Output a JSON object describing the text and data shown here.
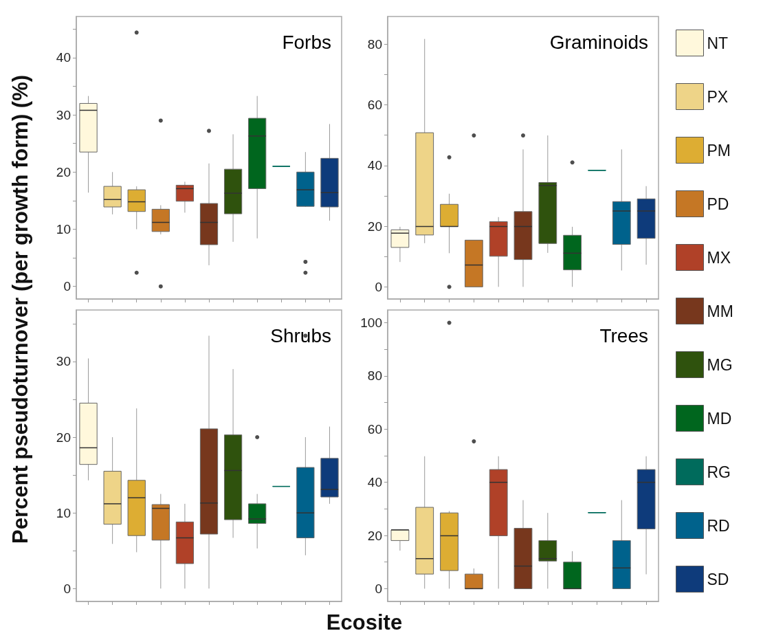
{
  "chart_data": [
    {
      "type": "box",
      "title": "Forbs",
      "ylabel": "Percent pseudoturnover  (per growth form) (%)",
      "categories": [
        null,
        null,
        null,
        null,
        null,
        null,
        null,
        null,
        null,
        null,
        null
      ],
      "tick_labels": "y",
      "ylim": [
        -2.2,
        47.2
      ],
      "yticks": [
        0,
        {
          "value": 5,
          "label": null
        },
        10,
        {
          "value": 15,
          "label": null
        },
        20,
        {
          "value": 25,
          "label": null
        },
        30,
        {
          "value": 35,
          "label": null
        },
        40,
        {
          "value": 45,
          "label": null
        }
      ],
      "series": [
        {
          "color": "#fff8dc",
          "boxes": [
            {
              "low": 16.4,
              "q1": 23.5,
              "median": 30.8,
              "q3": 32.0,
              "high": 33.3
            },
            null,
            null,
            null,
            null,
            null,
            null,
            null,
            null,
            null,
            null
          ]
        },
        {
          "color": "#eed488",
          "boxes": [
            null,
            {
              "low": 12.6,
              "q1": 13.9,
              "median": 15.2,
              "q3": 17.5,
              "high": 20.0
            },
            null,
            null,
            null,
            null,
            null,
            null,
            null,
            null,
            null
          ]
        },
        {
          "color": "#ddad33",
          "boxes": [
            null,
            null,
            {
              "low": 10.0,
              "q1": 13.1,
              "median": 14.8,
              "q3": 16.9,
              "high": 17.5,
              "outliers": [
                44.4,
                2.4
              ]
            },
            null,
            null,
            null,
            null,
            null,
            null,
            null,
            null
          ]
        },
        {
          "color": "#c57725",
          "boxes": [
            null,
            null,
            null,
            {
              "low": 9.1,
              "q1": 9.6,
              "median": 11.2,
              "q3": 13.5,
              "high": 14.2,
              "outliers": [
                29.0,
                0
              ]
            },
            null,
            null,
            null,
            null,
            null,
            null,
            null
          ]
        },
        {
          "color": "#b04128",
          "boxes": [
            null,
            null,
            null,
            null,
            {
              "low": 12.9,
              "q1": 14.9,
              "median": 17.1,
              "q3": 17.7,
              "high": 18.3
            },
            null,
            null,
            null,
            null,
            null,
            null
          ]
        },
        {
          "color": "#77371d",
          "boxes": [
            null,
            null,
            null,
            null,
            null,
            {
              "low": 3.7,
              "q1": 7.3,
              "median": 11.2,
              "q3": 14.5,
              "high": 21.5,
              "outliers": [
                27.2
              ]
            },
            null,
            null,
            null,
            null,
            null
          ]
        },
        {
          "color": "#2f520d",
          "boxes": [
            null,
            null,
            null,
            null,
            null,
            null,
            {
              "low": 7.8,
              "q1": 12.7,
              "median": 16.3,
              "q3": 20.5,
              "high": 26.6
            },
            null,
            null,
            null,
            null
          ]
        },
        {
          "color": "#00661e",
          "boxes": [
            null,
            null,
            null,
            null,
            null,
            null,
            null,
            {
              "low": 8.4,
              "q1": 17.1,
              "median": 26.3,
              "q3": 29.4,
              "high": 33.3
            },
            null,
            null,
            null
          ]
        },
        {
          "color": "#006b5c",
          "boxes": [
            null,
            null,
            null,
            null,
            null,
            null,
            null,
            null,
            {
              "low": 21.0,
              "q1": 21.0,
              "median": 21.0,
              "q3": 21.0,
              "high": 21.0
            },
            null,
            null
          ]
        },
        {
          "color": "#00628c",
          "boxes": [
            null,
            null,
            null,
            null,
            null,
            null,
            null,
            null,
            null,
            {
              "low": 13.9,
              "q1": 14.0,
              "median": 16.9,
              "q3": 20.0,
              "high": 23.5,
              "outliers": [
                4.3,
                2.4
              ]
            },
            null
          ]
        },
        {
          "color": "#0e3b7b",
          "boxes": [
            null,
            null,
            null,
            null,
            null,
            null,
            null,
            null,
            null,
            null,
            {
              "low": 11.5,
              "q1": 13.9,
              "median": 16.4,
              "q3": 22.4,
              "high": 28.4
            }
          ]
        }
      ]
    },
    {
      "type": "box",
      "title": "Graminoids",
      "legend": "right",
      "categories": [
        null,
        null,
        null,
        null,
        null,
        null,
        null,
        null,
        null,
        null,
        null
      ],
      "tick_labels": "y",
      "ylim": [
        -4,
        89.1
      ],
      "yticks": [
        0,
        {
          "value": 10,
          "label": null
        },
        20,
        {
          "value": 30,
          "label": null
        },
        40,
        {
          "value": 50,
          "label": null
        },
        60,
        {
          "value": 70,
          "label": null
        },
        80
      ],
      "series": [
        {
          "name": "NT",
          "color": "#fff8dc",
          "boxes": [
            {
              "low": 8.2,
              "q1": 13.0,
              "median": 17.7,
              "q3": 18.8,
              "high": 19.8
            },
            null,
            null,
            null,
            null,
            null,
            null,
            null,
            null,
            null,
            null
          ]
        },
        {
          "name": "PX",
          "color": "#eed488",
          "boxes": [
            null,
            {
              "low": 14.4,
              "q1": 17.1,
              "median": 19.9,
              "q3": 50.8,
              "high": 81.7
            },
            null,
            null,
            null,
            null,
            null,
            null,
            null,
            null,
            null
          ]
        },
        {
          "name": "PM",
          "color": "#ddad33",
          "boxes": [
            null,
            null,
            {
              "low": 11.1,
              "q1": 19.9,
              "median": 19.9,
              "q3": 27.2,
              "high": 30.7,
              "outliers": [
                42.7,
                0
              ]
            },
            null,
            null,
            null,
            null,
            null,
            null,
            null,
            null
          ]
        },
        {
          "name": "PD",
          "color": "#c57725",
          "boxes": [
            null,
            null,
            null,
            {
              "low": 0,
              "q1": 0,
              "median": 7.2,
              "q3": 15.4,
              "high": 15.4,
              "outliers": [
                49.9
              ]
            },
            null,
            null,
            null,
            null,
            null,
            null,
            null
          ]
        },
        {
          "name": "MX",
          "color": "#b04128",
          "boxes": [
            null,
            null,
            null,
            null,
            {
              "low": 0,
              "q1": 10.1,
              "median": 19.9,
              "q3": 21.5,
              "high": 23.0
            },
            null,
            null,
            null,
            null,
            null,
            null
          ]
        },
        {
          "name": "MM",
          "color": "#77371d",
          "boxes": [
            null,
            null,
            null,
            null,
            null,
            {
              "low": 0,
              "q1": 9.0,
              "median": 19.9,
              "q3": 24.8,
              "high": 45.3,
              "outliers": [
                49.9
              ]
            },
            null,
            null,
            null,
            null,
            null
          ]
        },
        {
          "name": "MG",
          "color": "#2f520d",
          "boxes": [
            null,
            null,
            null,
            null,
            null,
            null,
            {
              "low": 11.2,
              "q1": 14.3,
              "median": 33.4,
              "q3": 34.4,
              "high": 49.9
            },
            null,
            null,
            null,
            null
          ]
        },
        {
          "name": "MD",
          "color": "#00661e",
          "boxes": [
            null,
            null,
            null,
            null,
            null,
            null,
            null,
            {
              "low": 0,
              "q1": 5.6,
              "median": 11.1,
              "q3": 17.0,
              "high": 19.8,
              "outliers": [
                41.0
              ]
            },
            null,
            null,
            null
          ]
        },
        {
          "name": "RG",
          "color": "#006b5c",
          "boxes": [
            null,
            null,
            null,
            null,
            null,
            null,
            null,
            null,
            {
              "low": 38.4,
              "q1": 38.4,
              "median": 38.4,
              "q3": 38.4,
              "high": 38.4
            },
            null,
            null
          ]
        },
        {
          "name": "RD",
          "color": "#00628c",
          "boxes": [
            null,
            null,
            null,
            null,
            null,
            null,
            null,
            null,
            null,
            {
              "low": 5.4,
              "q1": 14.0,
              "median": 25.0,
              "q3": 28.1,
              "high": 45.3
            },
            null
          ]
        },
        {
          "name": "SD",
          "color": "#0e3b7b",
          "boxes": [
            null,
            null,
            null,
            null,
            null,
            null,
            null,
            null,
            null,
            null,
            {
              "low": 7.3,
              "q1": 16.0,
              "median": 25.0,
              "q3": 29.0,
              "high": 33.2
            }
          ]
        }
      ]
    },
    {
      "type": "box",
      "title": "Shrubs",
      "xlabel": "Ecosite",
      "categories": [
        null,
        null,
        null,
        null,
        null,
        null,
        null,
        null,
        null,
        null,
        null
      ],
      "tick_labels": "y",
      "ylim": [
        -1.7,
        36.8
      ],
      "yticks": [
        0,
        {
          "value": 5,
          "label": null
        },
        10,
        {
          "value": 15,
          "label": null
        },
        20,
        {
          "value": 25,
          "label": null
        },
        30,
        {
          "value": 35,
          "label": null
        }
      ],
      "series": [
        {
          "color": "#fff8dc",
          "boxes": [
            {
              "low": 14.3,
              "q1": 16.4,
              "median": 18.6,
              "q3": 24.5,
              "high": 30.4
            },
            null,
            null,
            null,
            null,
            null,
            null,
            null,
            null,
            null,
            null
          ]
        },
        {
          "color": "#eed488",
          "boxes": [
            null,
            {
              "low": 5.9,
              "q1": 8.5,
              "median": 11.2,
              "q3": 15.5,
              "high": 20.0
            },
            null,
            null,
            null,
            null,
            null,
            null,
            null,
            null,
            null
          ]
        },
        {
          "color": "#ddad33",
          "boxes": [
            null,
            null,
            {
              "low": 4.8,
              "q1": 7.0,
              "median": 12.0,
              "q3": 14.3,
              "high": 23.8
            },
            null,
            null,
            null,
            null,
            null,
            null,
            null,
            null
          ]
        },
        {
          "color": "#c57725",
          "boxes": [
            null,
            null,
            null,
            {
              "low": 0,
              "q1": 6.4,
              "median": 10.6,
              "q3": 11.1,
              "high": 12.5
            },
            null,
            null,
            null,
            null,
            null,
            null,
            null
          ]
        },
        {
          "color": "#b04128",
          "boxes": [
            null,
            null,
            null,
            null,
            {
              "low": 0,
              "q1": 3.3,
              "median": 6.7,
              "q3": 8.8,
              "high": 11.2
            },
            null,
            null,
            null,
            null,
            null,
            null
          ]
        },
        {
          "color": "#77371d",
          "boxes": [
            null,
            null,
            null,
            null,
            null,
            {
              "low": 0,
              "q1": 7.2,
              "median": 11.3,
              "q3": 21.1,
              "high": 33.4
            },
            null,
            null,
            null,
            null,
            null
          ]
        },
        {
          "color": "#2f520d",
          "boxes": [
            null,
            null,
            null,
            null,
            null,
            null,
            {
              "low": 6.7,
              "q1": 9.1,
              "median": 15.6,
              "q3": 20.3,
              "high": 29.0
            },
            null,
            null,
            null,
            null
          ]
        },
        {
          "color": "#00661e",
          "boxes": [
            null,
            null,
            null,
            null,
            null,
            null,
            null,
            {
              "low": 5.3,
              "q1": 8.6,
              "median": 9.2,
              "q3": 11.2,
              "high": 12.5,
              "outliers": [
                20.0
              ]
            },
            null,
            null,
            null
          ]
        },
        {
          "color": "#006b5c",
          "boxes": [
            null,
            null,
            null,
            null,
            null,
            null,
            null,
            null,
            {
              "low": 13.5,
              "q1": 13.5,
              "median": 13.5,
              "q3": 13.5,
              "high": 13.5
            },
            null,
            null
          ]
        },
        {
          "color": "#00628c",
          "boxes": [
            null,
            null,
            null,
            null,
            null,
            null,
            null,
            null,
            null,
            {
              "low": 4.4,
              "q1": 6.7,
              "median": 10.0,
              "q3": 16.0,
              "high": 20.0,
              "outliers": [
                33.4
              ]
            },
            null
          ]
        },
        {
          "color": "#0e3b7b",
          "boxes": [
            null,
            null,
            null,
            null,
            null,
            null,
            null,
            null,
            null,
            null,
            {
              "low": 11.2,
              "q1": 12.1,
              "median": 13.1,
              "q3": 17.2,
              "high": 21.4
            }
          ]
        }
      ]
    },
    {
      "type": "box",
      "title": "Trees",
      "categories": [
        null,
        null,
        null,
        null,
        null,
        null,
        null,
        null,
        null,
        null,
        null
      ],
      "tick_labels": "y",
      "ylim": [
        -4.8,
        104.8
      ],
      "yticks": [
        0,
        {
          "value": 10,
          "label": null
        },
        20,
        {
          "value": 30,
          "label": null
        },
        40,
        {
          "value": 50,
          "label": null
        },
        60,
        {
          "value": 70,
          "label": null
        },
        80,
        {
          "value": 90,
          "label": null
        },
        100
      ],
      "series": [
        {
          "color": "#fff8dc",
          "boxes": [
            {
              "low": 14.3,
              "q1": 18.1,
              "median": 22.1,
              "q3": 22.1,
              "high": 22.3
            },
            null,
            null,
            null,
            null,
            null,
            null,
            null,
            null,
            null,
            null
          ]
        },
        {
          "color": "#eed488",
          "boxes": [
            null,
            {
              "low": 0,
              "q1": 5.5,
              "median": 11.3,
              "q3": 30.6,
              "high": 49.8
            },
            null,
            null,
            null,
            null,
            null,
            null,
            null,
            null,
            null
          ]
        },
        {
          "color": "#ddad33",
          "boxes": [
            null,
            null,
            {
              "low": 0,
              "q1": 6.8,
              "median": 19.9,
              "q3": 28.5,
              "high": 29.2,
              "outliers": [
                100
              ]
            },
            null,
            null,
            null,
            null,
            null,
            null,
            null,
            null
          ]
        },
        {
          "color": "#c57725",
          "boxes": [
            null,
            null,
            null,
            {
              "low": 0,
              "q1": 0,
              "median": 0,
              "q3": 5.5,
              "high": 7.6,
              "outliers": [
                55.4
              ]
            },
            null,
            null,
            null,
            null,
            null,
            null,
            null
          ]
        },
        {
          "color": "#b04128",
          "boxes": [
            null,
            null,
            null,
            null,
            {
              "low": 0,
              "q1": 19.9,
              "median": 40.0,
              "q3": 44.8,
              "high": 49.8
            },
            null,
            null,
            null,
            null,
            null,
            null
          ]
        },
        {
          "color": "#77371d",
          "boxes": [
            null,
            null,
            null,
            null,
            null,
            {
              "low": 0,
              "q1": 0,
              "median": 8.5,
              "q3": 22.7,
              "high": 33.3
            },
            null,
            null,
            null,
            null,
            null
          ]
        },
        {
          "color": "#2f520d",
          "boxes": [
            null,
            null,
            null,
            null,
            null,
            null,
            {
              "low": 0,
              "q1": 10.4,
              "median": 11.3,
              "q3": 18.1,
              "high": 28.5
            },
            null,
            null,
            null,
            null
          ]
        },
        {
          "color": "#00661e",
          "boxes": [
            null,
            null,
            null,
            null,
            null,
            null,
            null,
            {
              "low": 0,
              "q1": 0,
              "median": 0,
              "q3": 10.0,
              "high": 14.1
            },
            null,
            null,
            null
          ]
        },
        {
          "color": "#006b5c",
          "boxes": [
            null,
            null,
            null,
            null,
            null,
            null,
            null,
            null,
            {
              "low": 28.6,
              "q1": 28.6,
              "median": 28.6,
              "q3": 28.6,
              "high": 28.6
            },
            null,
            null
          ]
        },
        {
          "color": "#00628c",
          "boxes": [
            null,
            null,
            null,
            null,
            null,
            null,
            null,
            null,
            null,
            {
              "low": 0,
              "q1": 0,
              "median": 7.8,
              "q3": 18.1,
              "high": 33.3
            },
            null
          ]
        },
        {
          "color": "#0e3b7b",
          "boxes": [
            null,
            null,
            null,
            null,
            null,
            null,
            null,
            null,
            null,
            null,
            {
              "low": 5.4,
              "q1": 22.5,
              "median": 40.0,
              "q3": 44.8,
              "high": 49.8
            }
          ]
        }
      ]
    }
  ]
}
